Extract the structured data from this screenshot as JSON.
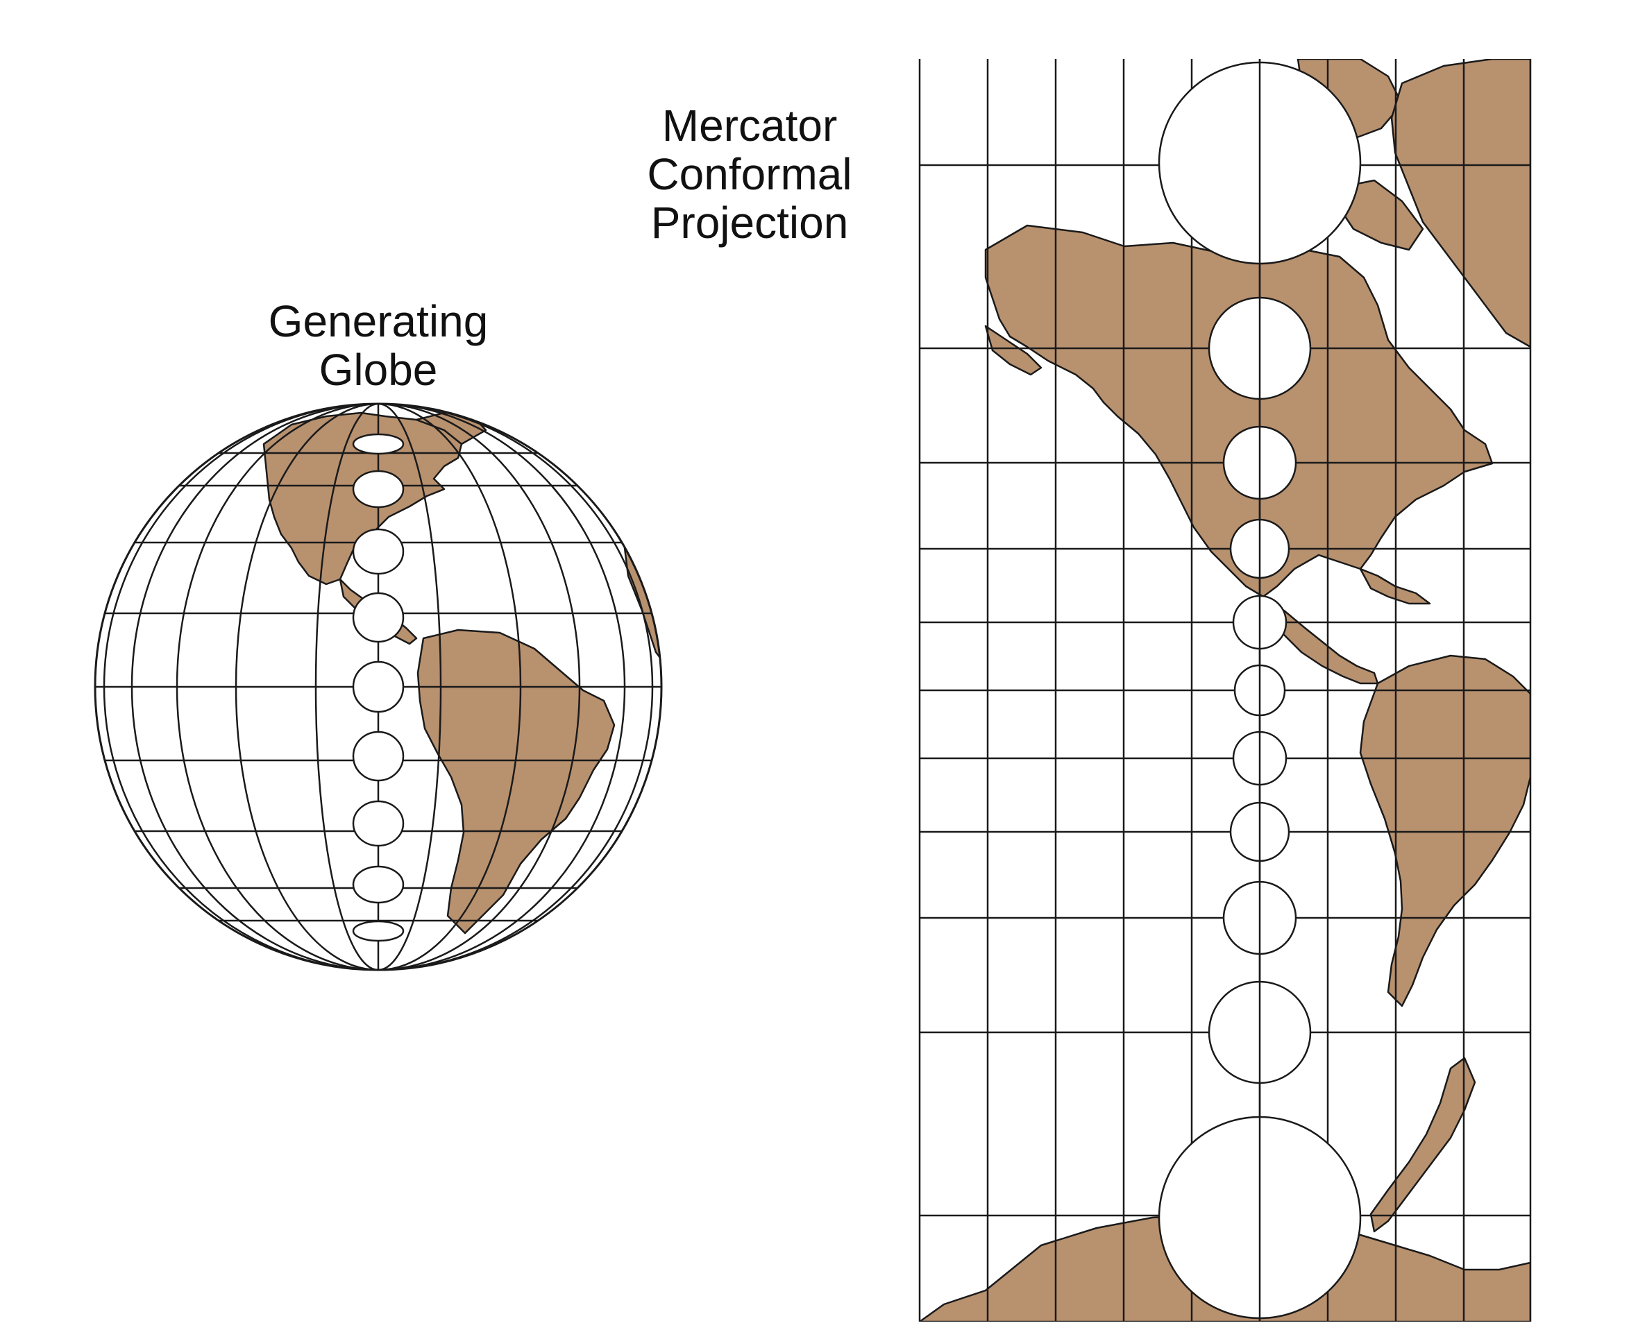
{
  "globe_label": {
    "line1": "Generating",
    "line2": "Globe"
  },
  "mercator_label": {
    "line1": "Mercator",
    "line2": "Conformal",
    "line3": "Projection"
  },
  "colors": {
    "land": "#b8916f",
    "line": "#1a1a1a",
    "background": "#ffffff",
    "circle_fill": "#ffffff"
  },
  "icons": {
    "globe": "orthographic-globe-americas",
    "map": "mercator-map-americas"
  }
}
